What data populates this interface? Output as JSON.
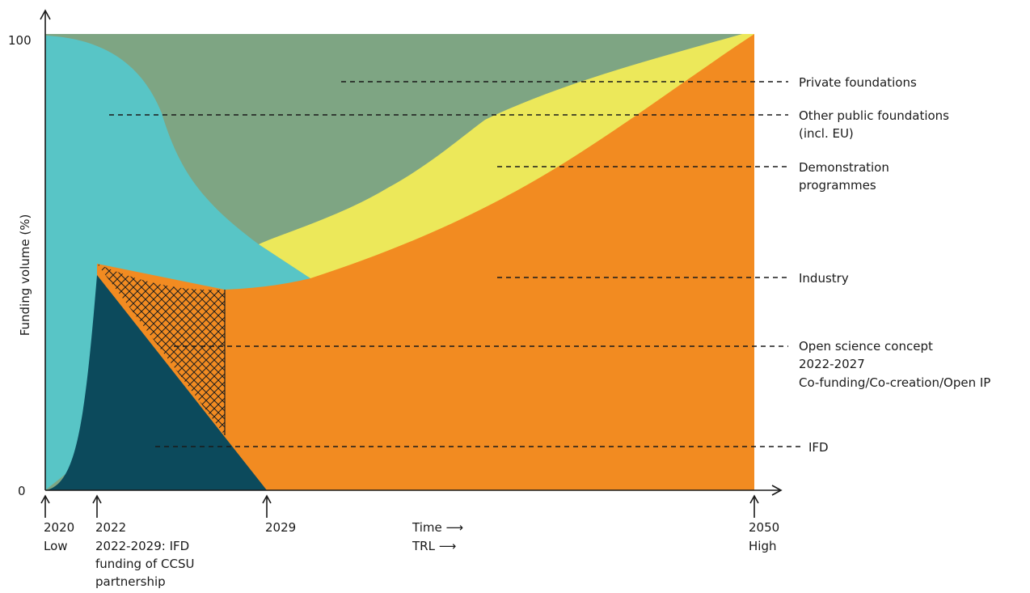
{
  "y_axis": {
    "label": "Funding volume (%)",
    "top": "100",
    "bottom": "0"
  },
  "x_axis": {
    "ticks": [
      {
        "lines": [
          "2020",
          "Low"
        ]
      },
      {
        "lines": [
          "2022",
          "2022-2029: IFD",
          "funding of CCSU",
          "partnership"
        ]
      },
      {
        "lines": [
          "2029"
        ]
      },
      {
        "lines": [
          "2050",
          "High"
        ]
      }
    ],
    "mid_labels": [
      "Time ⟶",
      "TRL ⟶"
    ]
  },
  "legend": [
    {
      "lines": [
        "Private foundations"
      ]
    },
    {
      "lines": [
        "Other public foundations",
        "(incl. EU)"
      ]
    },
    {
      "lines": [
        "Demonstration",
        "programmes"
      ]
    },
    {
      "lines": [
        "Industry"
      ]
    },
    {
      "lines": [
        "Open science concept",
        "2022-2027",
        "Co-funding/Co-creation/Open IP"
      ]
    },
    {
      "lines": [
        "IFD"
      ]
    }
  ],
  "colors": {
    "private_foundations": "#7ea583",
    "other_public_foundations": "#58c5c6",
    "demonstration_programmes": "#ece85a",
    "industry": "#f28b21",
    "open_science_hatch": "#1e1e1e",
    "ifd": "#0c4a5c"
  }
}
